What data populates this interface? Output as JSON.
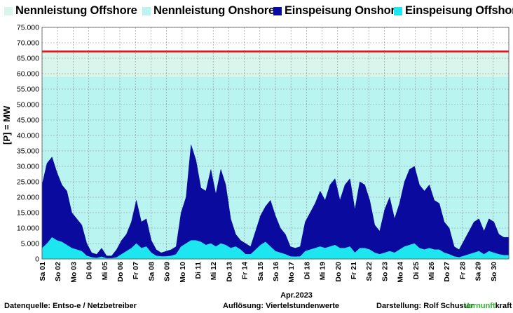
{
  "legend": {
    "items": [
      {
        "label": "Nennleistung Offshore",
        "color": "#d9f5ec"
      },
      {
        "label": "Nennleistung Onshore",
        "color": "#b9f4f0"
      },
      {
        "label": "Einspeisung Onshore",
        "color": "#0a0a9e"
      },
      {
        "label": "Einspeisung Offshore",
        "color": "#1ee6f0"
      }
    ]
  },
  "footer": {
    "source": "Datenquelle: Entso-e  / Netzbetreiber",
    "resolution": "Auflösung: Viertelstundenwerte",
    "author": "Darstellung:  Rolf Schuster",
    "brand_green": "Vernunft",
    "brand_black": "kraft"
  },
  "chart_data": {
    "type": "area",
    "ylabel": "[P] = MW",
    "xlabel": "Apr.2023",
    "ylim": [
      0,
      75000
    ],
    "yticks": [
      "0",
      "5.000",
      "10.000",
      "15.000",
      "20.000",
      "25.000",
      "30.000",
      "35.000",
      "40.000",
      "45.000",
      "50.000",
      "55.000",
      "60.000",
      "65.000",
      "70.000",
      "75.000"
    ],
    "x_tick_labels": [
      "Sa 01",
      "So 02",
      "Mo 03",
      "Di 04",
      "Mi 05",
      "Do 06",
      "Fr 07",
      "Sa 08",
      "So 09",
      "Mo 10",
      "Di 11",
      "Mi 12",
      "Do 13",
      "Fr 14",
      "Sa 15",
      "So 16",
      "Mo 17",
      "Di 18",
      "Mi 19",
      "Do 20",
      "Fr 21",
      "Sa 22",
      "So 23",
      "Mo 24",
      "Di 25",
      "Mi 26",
      "Do 27",
      "Fr 28",
      "Sa 29",
      "So 30"
    ],
    "grid": true,
    "colors": {
      "offshore_capacity": "#d9f5ec",
      "onshore_capacity": "#b9f4f0",
      "onshore_feed": "#0a0a9e",
      "offshore_feed": "#1ee6f0",
      "total_capacity_line": "#e8141c"
    },
    "total_capacity_line": 67200,
    "series": [
      {
        "name": "Nennleistung Onshore",
        "values": [
          59000
        ]
      },
      {
        "name": "Nennleistung Offshore",
        "values": [
          8200
        ]
      },
      {
        "name": "Einspeisung Onshore",
        "values": [
          24000,
          31000,
          33000,
          28000,
          24000,
          22000,
          15000,
          13000,
          11000,
          5000,
          2000,
          1500,
          3500,
          1000,
          1000,
          3000,
          6000,
          8000,
          12000,
          19000,
          12000,
          13000,
          6000,
          3000,
          2000,
          2500,
          3000,
          4000,
          15000,
          20000,
          37000,
          32000,
          23000,
          22000,
          29000,
          21000,
          29000,
          24000,
          13000,
          8000,
          6000,
          5000,
          4000,
          9000,
          14000,
          17000,
          19000,
          14000,
          10000,
          8000,
          4000,
          3500,
          4000,
          12000,
          15000,
          18000,
          22000,
          19000,
          24000,
          26000,
          19000,
          24000,
          26000,
          16000,
          25000,
          24000,
          19000,
          11000,
          9000,
          16000,
          20000,
          13000,
          18000,
          25000,
          29000,
          30000,
          24000,
          22000,
          24000,
          19000,
          18000,
          12000,
          10000,
          4000,
          3000,
          6000,
          9000,
          12000,
          13000,
          9000,
          13000,
          12000,
          8000,
          7000,
          7000
        ]
      },
      {
        "name": "Einspeisung Offshore",
        "values": [
          3500,
          5000,
          7000,
          6000,
          5500,
          4500,
          3500,
          3000,
          2500,
          1000,
          500,
          300,
          700,
          200,
          200,
          500,
          1500,
          2500,
          3500,
          5000,
          3500,
          4000,
          2000,
          1000,
          800,
          800,
          1000,
          1500,
          4000,
          5000,
          6000,
          6000,
          5500,
          4500,
          5000,
          4000,
          5000,
          4500,
          3500,
          4000,
          3000,
          1500,
          1500,
          3000,
          4500,
          5500,
          4000,
          2500,
          2000,
          1500,
          800,
          700,
          800,
          2500,
          3000,
          3500,
          4000,
          3500,
          4000,
          4500,
          3500,
          3500,
          4000,
          2000,
          3500,
          3500,
          3000,
          2000,
          1500,
          2000,
          2500,
          2000,
          3000,
          4000,
          4500,
          5000,
          3500,
          3000,
          3500,
          3000,
          3000,
          2000,
          1500,
          800,
          500,
          1000,
          1500,
          2000,
          2500,
          1500,
          2500,
          2000,
          1500,
          1200,
          1200
        ]
      }
    ]
  }
}
